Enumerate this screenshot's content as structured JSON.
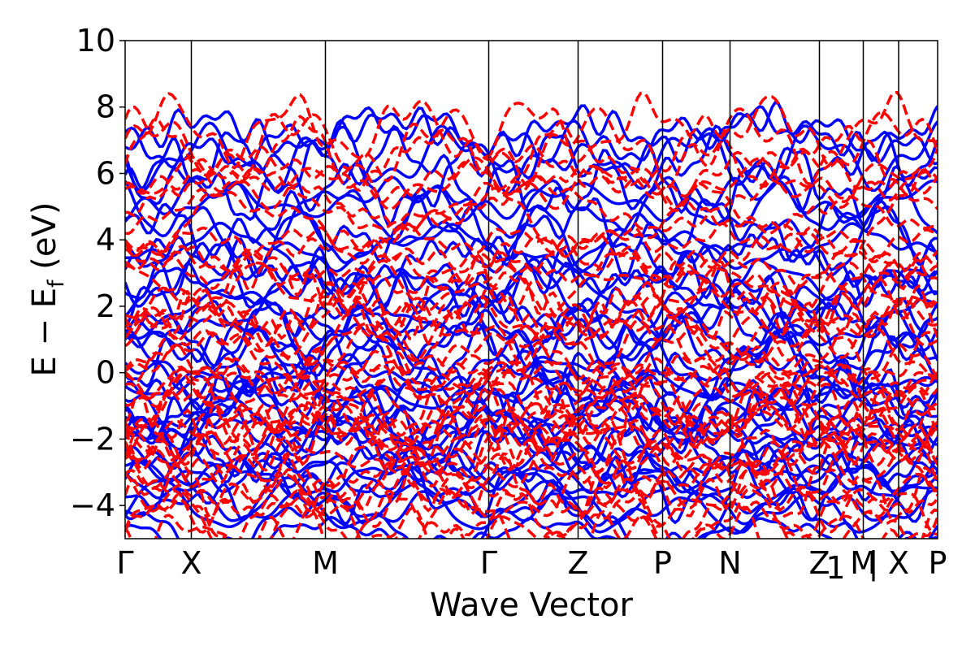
{
  "chart_data": {
    "type": "line",
    "title": "",
    "xlabel": "Wave Vector",
    "ylabel": "E − E",
    "ylabel_sub": "f",
    "ylabel_unit": " (eV)",
    "ylim": [
      -5,
      10
    ],
    "yticks": [
      -4,
      -2,
      0,
      2,
      4,
      6,
      8,
      10
    ],
    "ytick_labels": [
      "−4",
      "−2",
      "0",
      "2",
      "4",
      "6",
      "8",
      "10"
    ],
    "kpoints": [
      {
        "label": "Γ",
        "x": 0
      },
      {
        "label": "X",
        "x": 0.0815
      },
      {
        "label": "M",
        "x": 0.2465
      },
      {
        "label": "Γ",
        "x": 0.4475
      },
      {
        "label": "Z",
        "x": 0.5575
      },
      {
        "label": "P",
        "x": 0.6615
      },
      {
        "label": "N",
        "x": 0.7445
      },
      {
        "label": "Z",
        "x": 0.8545
      },
      {
        "label": "M",
        "x": 0.9085
      },
      {
        "label": "X",
        "x": 0.952
      },
      {
        "label": "P",
        "x": 1.0
      }
    ],
    "path_extra_labels": [
      {
        "label": "1",
        "x": 0.8745
      },
      {
        "label": "|",
        "x": 0.921
      }
    ],
    "grid": false,
    "legend": "none",
    "series": [
      {
        "style": "solid",
        "color": "#0000ff",
        "seed": 11
      },
      {
        "style": "dashed",
        "color": "#ff0000",
        "seed": 29
      }
    ],
    "band_energies": [
      -4.8,
      -4.5,
      -4.2,
      -3.9,
      -3.6,
      -3.3,
      -3.0,
      -2.8,
      -2.5,
      -2.3,
      -2.1,
      -1.9,
      -1.7,
      -1.5,
      -1.3,
      -1.1,
      -0.9,
      -0.7,
      -0.4,
      -0.1,
      0.2,
      0.5,
      0.8,
      1.1,
      1.4,
      1.7,
      2.0,
      2.3,
      2.6,
      2.9,
      3.3,
      3.7,
      4.1,
      4.5,
      4.9,
      5.3,
      5.7,
      6.1,
      6.5,
      6.9,
      7.3
    ]
  }
}
